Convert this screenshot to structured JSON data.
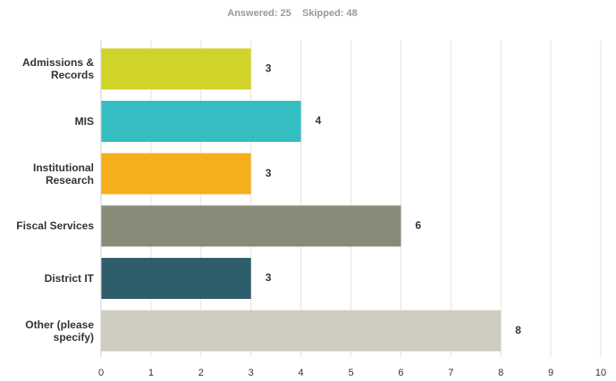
{
  "chart_data": {
    "type": "bar",
    "orientation": "horizontal",
    "subtitle": "Answered: 25    Skipped: 48",
    "categories": [
      "Admissions & Records",
      "MIS",
      "Institutional Research",
      "Fiscal Services",
      "District IT",
      "Other (please specify)"
    ],
    "values": [
      3,
      4,
      3,
      6,
      3,
      8
    ],
    "colors": [
      "#d0d42a",
      "#35bec1",
      "#f5af1e",
      "#8a8a78",
      "#2e5e6b",
      "#cfcdbf"
    ],
    "xlim": [
      0,
      10
    ],
    "xticks": [
      0,
      1,
      2,
      3,
      4,
      5,
      6,
      7,
      8,
      9,
      10
    ],
    "grid": true
  }
}
